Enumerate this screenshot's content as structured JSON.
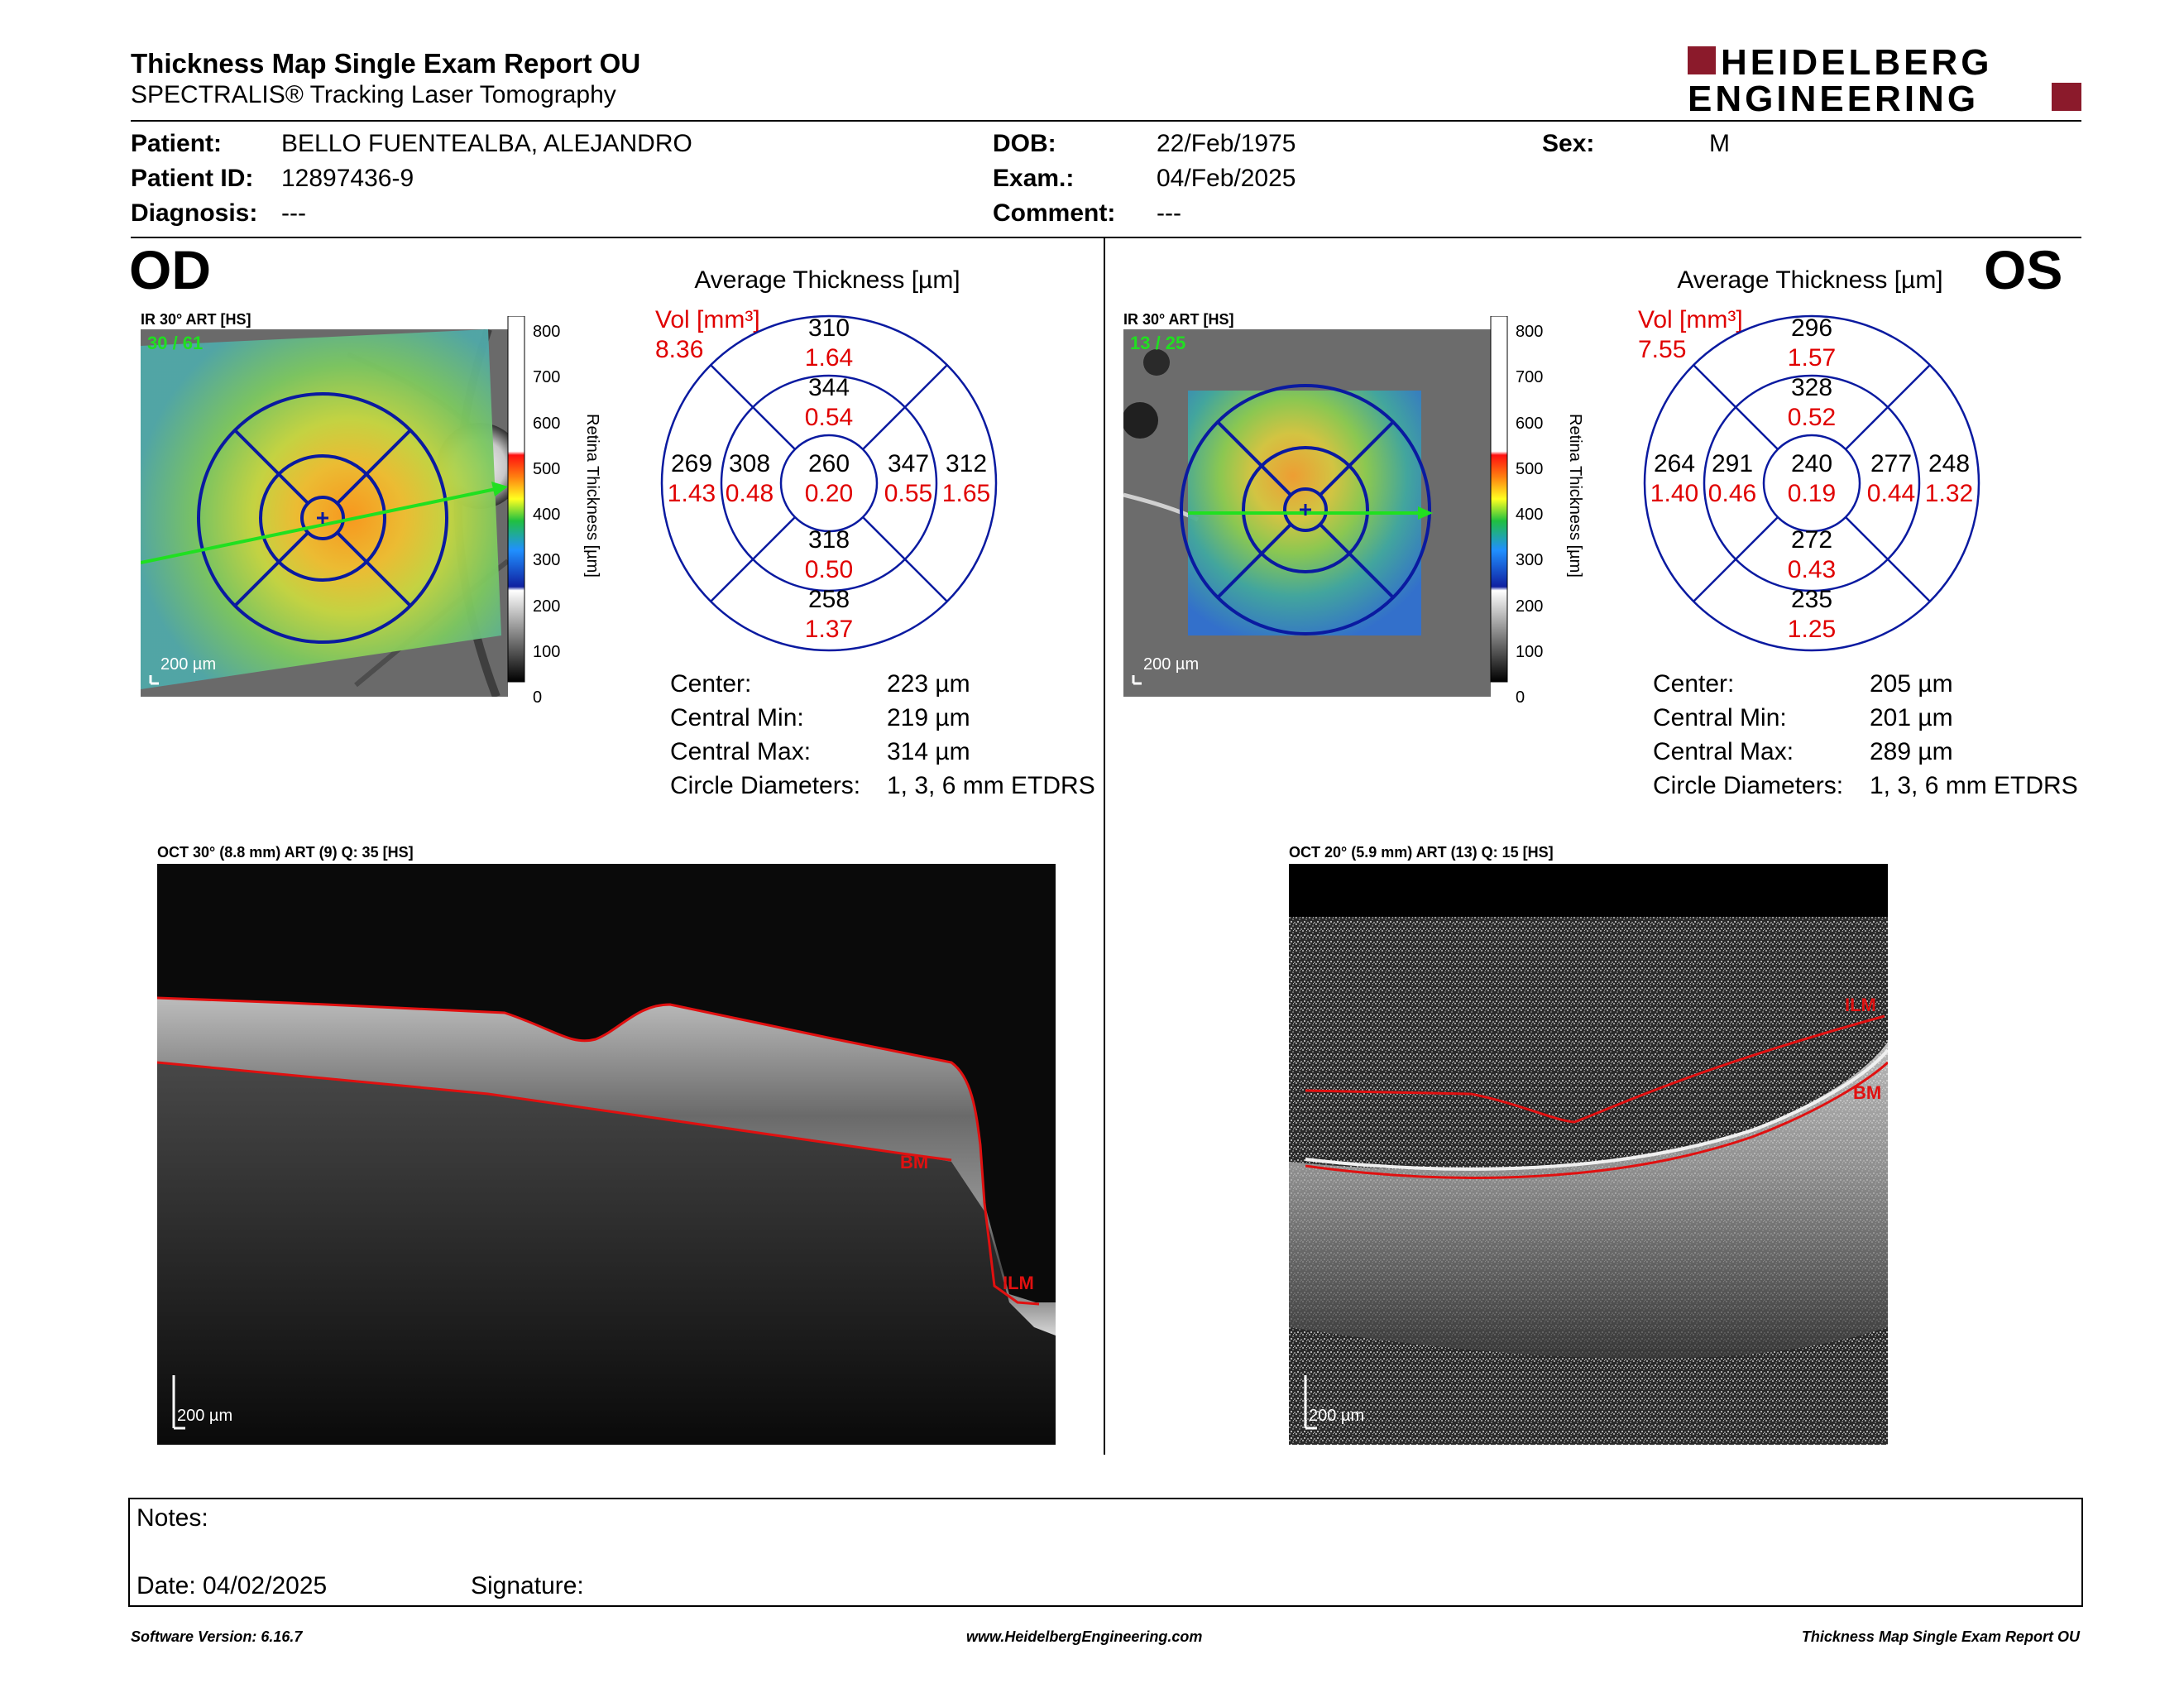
{
  "header": {
    "title": "Thickness Map Single Exam Report OU",
    "subtitle": "SPECTRALIS® Tracking Laser Tomography",
    "logo_line1": "HEIDELBERG",
    "logo_line2": "ENGINEERING",
    "brand_color": "#8b1a2b"
  },
  "patient": {
    "patient_label": "Patient:",
    "patient_value": "BELLO FUENTEALBA, ALEJANDRO",
    "id_label": "Patient ID:",
    "id_value": "12897436-9",
    "diagnosis_label": "Diagnosis:",
    "diagnosis_value": "---",
    "dob_label": "DOB:",
    "dob_value": "22/Feb/1975",
    "exam_label": "Exam.:",
    "exam_value": "04/Feb/2025",
    "comment_label": "Comment:",
    "comment_value": "---",
    "sex_label": "Sex:",
    "sex_value": "M"
  },
  "od": {
    "eye": "OD",
    "ir_label": "IR 30° ART [HS]",
    "ir_counter": "30 / 61",
    "scale": "200 µm",
    "colorbar_title": "Retina Thickness [µm]",
    "colorbar_ticks": [
      "800",
      "700",
      "600",
      "500",
      "400",
      "300",
      "200",
      "100",
      "0"
    ],
    "avg_title": "Average Thickness [µm]",
    "vol_label": "Vol [mm³]",
    "vol_value": "8.36",
    "grid": {
      "center_t": "260",
      "center_v": "0.20",
      "inner_sup_t": "344",
      "inner_sup_v": "0.54",
      "inner_inf_t": "318",
      "inner_inf_v": "0.50",
      "inner_left_t": "308",
      "inner_left_v": "0.48",
      "inner_right_t": "347",
      "inner_right_v": "0.55",
      "outer_sup_t": "310",
      "outer_sup_v": "1.64",
      "outer_inf_t": "258",
      "outer_inf_v": "1.37",
      "outer_left_t": "269",
      "outer_left_v": "1.43",
      "outer_right_t": "312",
      "outer_right_v": "1.65"
    },
    "stats": {
      "center_label": "Center:",
      "center_value": "223 µm",
      "min_label": "Central Min:",
      "min_value": "219 µm",
      "max_label": "Central Max:",
      "max_value": "314 µm",
      "diam_label": "Circle Diameters:",
      "diam_value": "1, 3, 6 mm ETDRS"
    },
    "oct_label": "OCT 30° (8.8 mm) ART (9) Q: 35 [HS]",
    "oct_scale": "200 µm",
    "layer_ilm": "ILM",
    "layer_bm": "BM"
  },
  "os": {
    "eye": "OS",
    "ir_label": "IR 30° ART [HS]",
    "ir_counter": "13 / 25",
    "scale": "200 µm",
    "colorbar_title": "Retina Thickness [µm]",
    "colorbar_ticks": [
      "800",
      "700",
      "600",
      "500",
      "400",
      "300",
      "200",
      "100",
      "0"
    ],
    "avg_title": "Average Thickness [µm]",
    "vol_label": "Vol [mm³]",
    "vol_value": "7.55",
    "grid": {
      "center_t": "240",
      "center_v": "0.19",
      "inner_sup_t": "328",
      "inner_sup_v": "0.52",
      "inner_inf_t": "272",
      "inner_inf_v": "0.43",
      "inner_left_t": "291",
      "inner_left_v": "0.46",
      "inner_right_t": "277",
      "inner_right_v": "0.44",
      "outer_sup_t": "296",
      "outer_sup_v": "1.57",
      "outer_inf_t": "235",
      "outer_inf_v": "1.25",
      "outer_left_t": "264",
      "outer_left_v": "1.40",
      "outer_right_t": "248",
      "outer_right_v": "1.32"
    },
    "stats": {
      "center_label": "Center:",
      "center_value": "205 µm",
      "min_label": "Central Min:",
      "min_value": "201 µm",
      "max_label": "Central Max:",
      "max_value": "289 µm",
      "diam_label": "Circle Diameters:",
      "diam_value": "1, 3, 6 mm ETDRS"
    },
    "oct_label": "OCT 20° (5.9 mm) ART (13) Q: 15 [HS]",
    "oct_scale": "200 µm",
    "layer_ilm": "ILM",
    "layer_bm": "BM"
  },
  "notes": {
    "notes_label": "Notes:",
    "date_label": "Date: 04/02/2025",
    "signature_label": "Signature:"
  },
  "footer": {
    "version": "Software Version: 6.16.7",
    "url": "www.HeidelbergEngineering.com",
    "report": "Thickness Map Single Exam Report OU"
  }
}
